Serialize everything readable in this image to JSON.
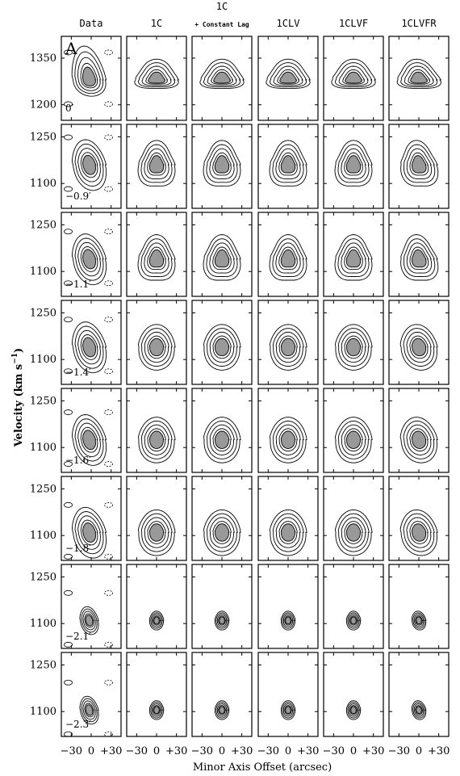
{
  "chart_data": {
    "type": "contour",
    "panel_letter": "A",
    "columns": [
      {
        "label": "Data"
      },
      {
        "label": "1C"
      },
      {
        "label": "1C",
        "sublabel": "+ Constant Lag"
      },
      {
        "label": "1CLV"
      },
      {
        "label": "1CLVF"
      },
      {
        "label": "1CLVFR"
      }
    ],
    "ylabel": "Velocity (km s",
    "ylabel_sup": "−1",
    "ylabel_close": ")",
    "xlabel": "Minor Axis Offset (arcsec)",
    "xticklabels": [
      "−30",
      "0",
      "+30"
    ],
    "xlim": [
      -45,
      45
    ],
    "rows": [
      {
        "offset_label": "0′",
        "ylim": [
          1150,
          1420
        ],
        "yticks": [
          1200,
          1350
        ],
        "yticklabels": [
          "1200",
          "1350"
        ],
        "peak_velocity": 1280
      },
      {
        "offset_label": "−0.9′",
        "ylim": [
          1020,
          1290
        ],
        "yticks": [
          1100,
          1250
        ],
        "yticklabels": [
          "1100",
          "1250"
        ],
        "peak_velocity": 1160
      },
      {
        "offset_label": "−1.1′",
        "ylim": [
          1020,
          1290
        ],
        "yticks": [
          1100,
          1250
        ],
        "yticklabels": [
          "1100",
          "1250"
        ],
        "peak_velocity": 1140
      },
      {
        "offset_label": "−1.4′",
        "ylim": [
          1020,
          1290
        ],
        "yticks": [
          1100,
          1250
        ],
        "yticklabels": [
          "1100",
          "1250"
        ],
        "peak_velocity": 1140
      },
      {
        "offset_label": "−1.6′",
        "ylim": [
          1020,
          1290
        ],
        "yticks": [
          1100,
          1250
        ],
        "yticklabels": [
          "1100",
          "1250"
        ],
        "peak_velocity": 1125
      },
      {
        "offset_label": "−1.8′",
        "ylim": [
          1020,
          1290
        ],
        "yticks": [
          1100,
          1250
        ],
        "yticklabels": [
          "1100",
          "1250"
        ],
        "peak_velocity": 1110
      },
      {
        "offset_label": "−2.1′",
        "ylim": [
          1020,
          1290
        ],
        "yticks": [
          1100,
          1250
        ],
        "yticklabels": [
          "1100",
          "1250"
        ],
        "peak_velocity": 1110
      },
      {
        "offset_label": "−2.3′",
        "ylim": [
          1020,
          1290
        ],
        "yticks": [
          1100,
          1250
        ],
        "yticklabels": [
          "1100",
          "1250"
        ],
        "peak_velocity": 1105
      }
    ]
  }
}
